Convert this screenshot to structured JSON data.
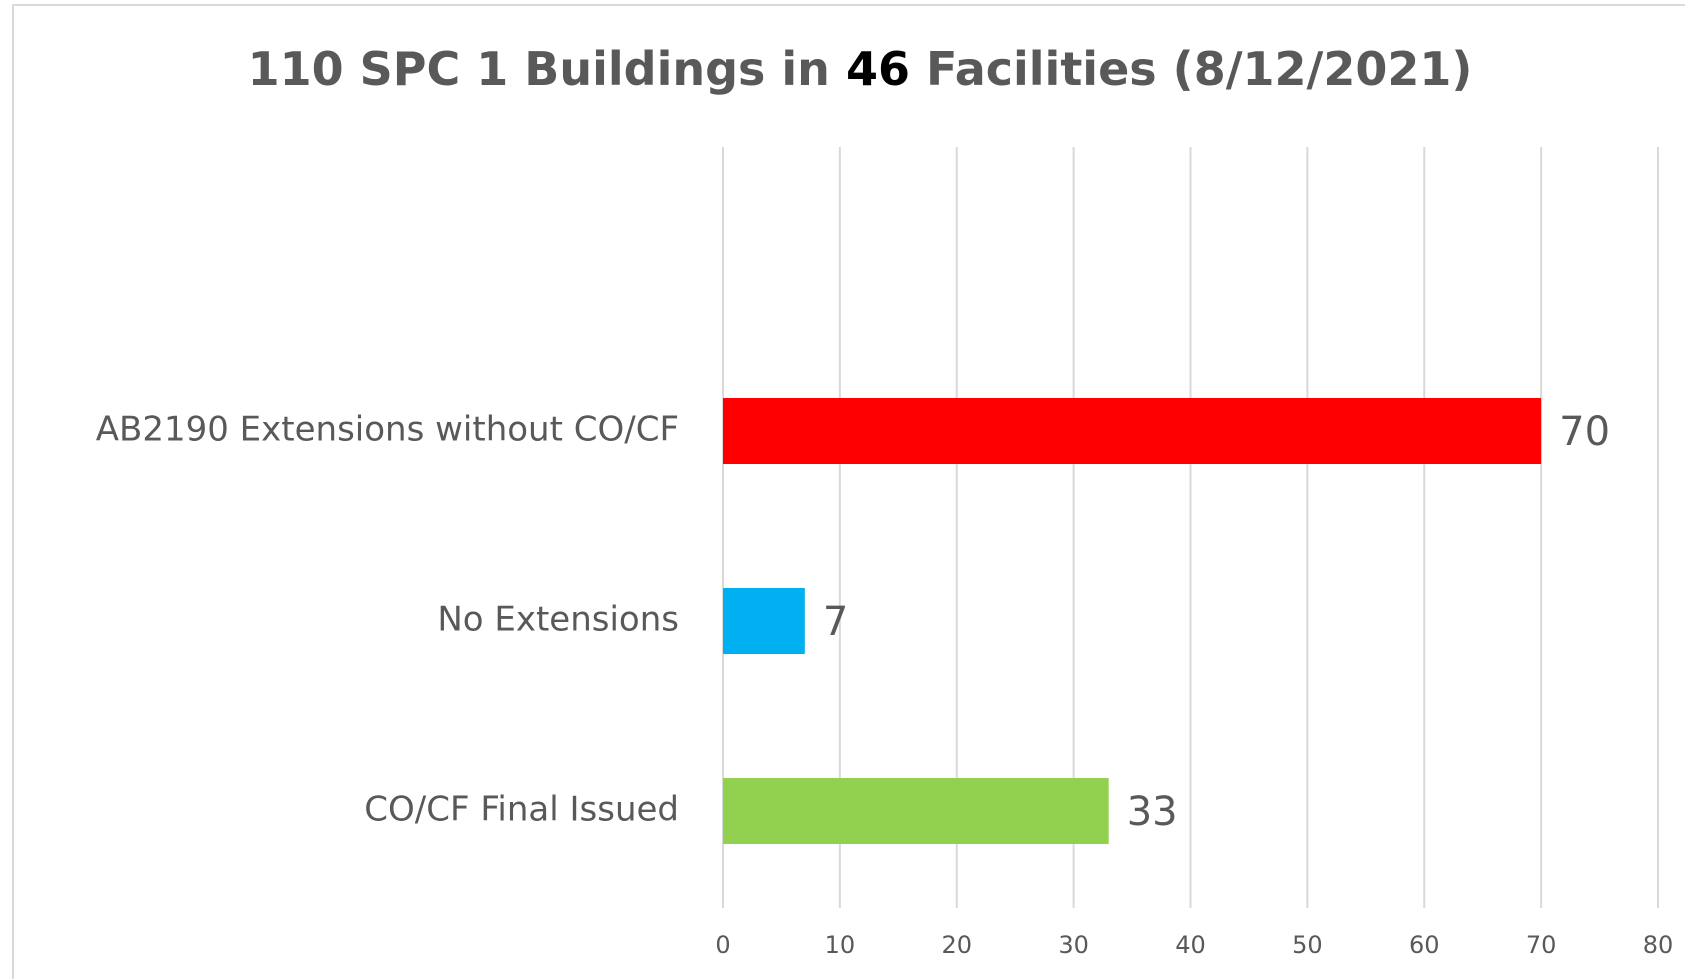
{
  "chart_data": {
    "type": "bar",
    "orientation": "horizontal",
    "title": [
      "110 SPC 1 Buildings in ",
      "46",
      " Facilities (8/12/2021)"
    ],
    "categories": [
      "AB2190 Extensions without CO/CF",
      "No Extensions",
      "CO/CF Final Issued"
    ],
    "values": [
      70,
      7,
      33
    ],
    "colors": [
      "#ff0000",
      "#00b0f0",
      "#92d050"
    ],
    "xlim": [
      0,
      80
    ],
    "xticks": [
      0,
      10,
      20,
      30,
      40,
      50,
      60,
      70,
      80
    ],
    "grid": true
  }
}
